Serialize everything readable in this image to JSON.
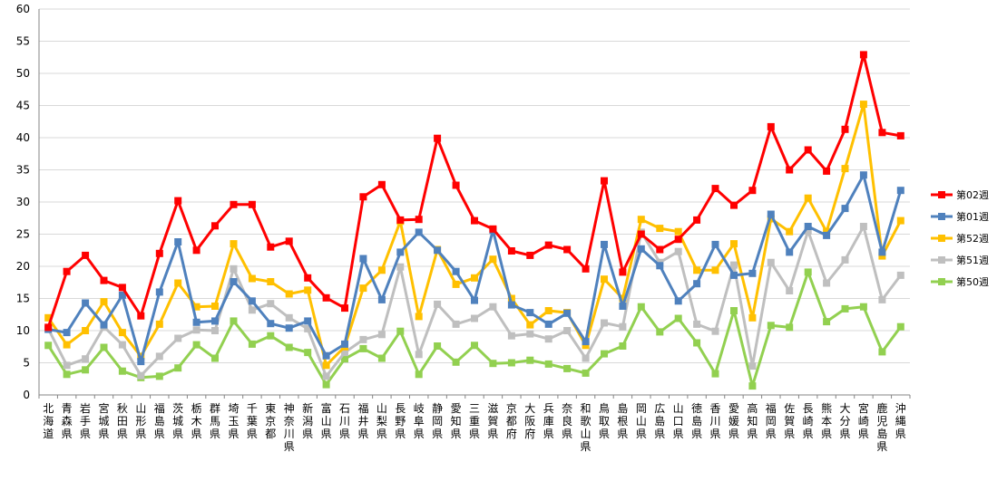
{
  "chart_data": {
    "type": "line",
    "title": "",
    "xlabel": "",
    "ylabel": "",
    "ylim": [
      0,
      60
    ],
    "ystep": 5,
    "grid": true,
    "legend_position": "right",
    "categories": [
      "北海道",
      "青森県",
      "岩手県",
      "宮城県",
      "秋田県",
      "山形県",
      "福島県",
      "茨城県",
      "栃木県",
      "群馬県",
      "埼玉県",
      "千葉県",
      "東京都",
      "神奈川県",
      "新潟県",
      "富山県",
      "石川県",
      "福井県",
      "山梨県",
      "長野県",
      "岐阜県",
      "静岡県",
      "愛知県",
      "三重県",
      "滋賀県",
      "京都府",
      "大阪府",
      "兵庫県",
      "奈良県",
      "和歌山県",
      "鳥取県",
      "島根県",
      "岡山県",
      "広島県",
      "山口県",
      "徳島県",
      "香川県",
      "愛媛県",
      "高知県",
      "福岡県",
      "佐賀県",
      "長崎県",
      "熊本県",
      "大分県",
      "宮崎県",
      "鹿児島県",
      "沖縄県"
    ],
    "series": [
      {
        "name": "第02週",
        "color": "#ff0000",
        "marker": "square",
        "values": [
          10.5,
          19.2,
          21.7,
          17.8,
          16.7,
          12.3,
          22.0,
          30.2,
          22.5,
          26.3,
          29.6,
          29.6,
          23.0,
          23.9,
          18.2,
          15.1,
          13.5,
          30.8,
          32.7,
          27.2,
          27.3,
          39.9,
          32.6,
          27.1,
          25.8,
          22.4,
          21.7,
          23.3,
          22.6,
          19.6,
          33.3,
          19.1,
          25.0,
          22.6,
          24.2,
          27.2,
          32.1,
          29.5,
          31.8,
          41.7,
          35.0,
          38.1,
          34.8,
          41.3,
          52.9,
          40.8,
          40.3
        ]
      },
      {
        "name": "第01週",
        "color": "#4f81bd",
        "marker": "square",
        "values": [
          10.2,
          9.7,
          14.3,
          10.9,
          15.5,
          5.2,
          16.0,
          23.8,
          11.3,
          11.5,
          17.6,
          14.6,
          11.1,
          10.4,
          11.5,
          6.1,
          7.9,
          21.2,
          14.8,
          22.2,
          25.3,
          22.5,
          19.2,
          14.7,
          25.6,
          14.0,
          12.8,
          11.0,
          12.7,
          8.3,
          23.4,
          13.8,
          22.7,
          20.1,
          14.6,
          17.3,
          23.4,
          18.6,
          18.9,
          28.1,
          22.2,
          26.2,
          24.8,
          29.0,
          34.2,
          22.2,
          31.8
        ]
      },
      {
        "name": "第52週",
        "color": "#ffc000",
        "marker": "square",
        "values": [
          12.0,
          7.8,
          10.0,
          14.5,
          9.7,
          6.0,
          11.0,
          17.4,
          13.7,
          13.8,
          23.5,
          18.1,
          17.6,
          15.7,
          16.3,
          4.6,
          7.5,
          16.6,
          19.4,
          27.0,
          12.2,
          22.6,
          17.2,
          18.2,
          21.1,
          15.0,
          10.9,
          13.1,
          12.8,
          7.7,
          18.0,
          15.0,
          27.3,
          25.9,
          25.4,
          19.4,
          19.4,
          23.5,
          12.0,
          27.4,
          25.4,
          30.6,
          25.4,
          35.2,
          45.2,
          21.6,
          27.1
        ]
      },
      {
        "name": "第51週",
        "color": "#bfbfbf",
        "marker": "square",
        "values": [
          10.3,
          4.6,
          5.6,
          10.6,
          7.8,
          3.0,
          6.0,
          8.8,
          10.1,
          10.0,
          19.6,
          13.2,
          14.2,
          12.0,
          10.3,
          2.9,
          6.6,
          8.6,
          9.4,
          19.9,
          6.3,
          14.1,
          11.0,
          11.9,
          13.7,
          9.2,
          9.5,
          8.7,
          10.0,
          5.7,
          11.2,
          10.6,
          25.3,
          20.6,
          22.3,
          11.0,
          9.9,
          20.2,
          4.5,
          20.6,
          16.2,
          25.5,
          17.4,
          21.0,
          26.2,
          14.8,
          18.6
        ]
      },
      {
        "name": "第50週",
        "color": "#92d050",
        "marker": "square",
        "values": [
          7.7,
          3.2,
          3.9,
          7.4,
          3.7,
          2.7,
          2.9,
          4.2,
          7.8,
          5.7,
          11.5,
          7.9,
          9.2,
          7.4,
          6.6,
          1.6,
          5.6,
          7.2,
          5.7,
          9.9,
          3.2,
          7.6,
          5.1,
          7.7,
          4.9,
          5.0,
          5.4,
          4.8,
          4.1,
          3.4,
          6.4,
          7.6,
          13.7,
          9.8,
          11.9,
          8.1,
          3.3,
          13.1,
          1.4,
          10.8,
          10.5,
          19.1,
          11.4,
          13.4,
          13.7,
          6.7,
          10.6
        ]
      }
    ]
  }
}
